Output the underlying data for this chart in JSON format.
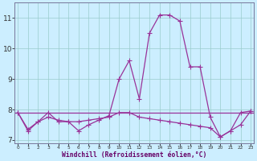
{
  "xlabel": "Windchill (Refroidissement éolien,°C)",
  "background_color": "#cceeff",
  "line_color": "#993399",
  "hours": [
    0,
    1,
    2,
    3,
    4,
    5,
    6,
    7,
    8,
    9,
    10,
    11,
    12,
    13,
    14,
    15,
    16,
    17,
    18,
    19,
    20,
    21,
    22,
    23
  ],
  "line1": [
    7.9,
    7.3,
    7.6,
    7.9,
    7.6,
    7.6,
    7.3,
    7.5,
    7.65,
    7.8,
    9.0,
    9.6,
    8.35,
    10.5,
    11.1,
    11.1,
    10.9,
    9.4,
    9.4,
    7.75,
    7.1,
    7.3,
    7.9,
    7.95
  ],
  "line2": [
    7.9,
    7.35,
    7.6,
    7.75,
    7.65,
    7.6,
    7.6,
    7.65,
    7.7,
    7.75,
    7.9,
    7.9,
    7.75,
    7.7,
    7.65,
    7.6,
    7.55,
    7.5,
    7.45,
    7.4,
    7.1,
    7.3,
    7.5,
    7.95
  ],
  "line3_x": [
    0,
    19
  ],
  "line3_y": [
    7.9,
    7.75
  ],
  "hline_y": 7.9,
  "ylim": [
    6.9,
    11.5
  ],
  "yticks": [
    7,
    8,
    9,
    10,
    11
  ],
  "xlim": [
    -0.3,
    23.3
  ],
  "grid_color": "#99cccc",
  "markersize": 2.5,
  "linewidth": 0.9
}
